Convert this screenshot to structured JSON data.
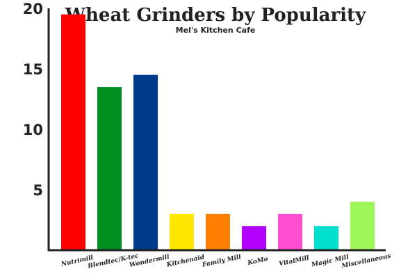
{
  "chart_data": {
    "type": "bar",
    "title": "Wheat Grinders by Popularity",
    "subtitle": "Mel's Kitchen Cafe",
    "xlabel": "",
    "ylabel": "",
    "ylim": [
      0,
      20
    ],
    "yticks": [
      5,
      10,
      15,
      20
    ],
    "grid": false,
    "categories": [
      "Nutrimill",
      "Blendtec/K-tec",
      "Wondermill",
      "Kitchenaid",
      "Family Mill",
      "KoMo",
      "VitalMill",
      "Magic Mill",
      "Miscellaneous"
    ],
    "values": [
      19.5,
      13.5,
      14.5,
      3,
      3,
      2,
      3,
      2,
      4
    ],
    "colors": [
      "#ff0000",
      "#008f1f",
      "#003a8c",
      "#ffe600",
      "#ff7f00",
      "#b400ff",
      "#ff4fd0",
      "#00e0cc",
      "#9ef556"
    ]
  }
}
